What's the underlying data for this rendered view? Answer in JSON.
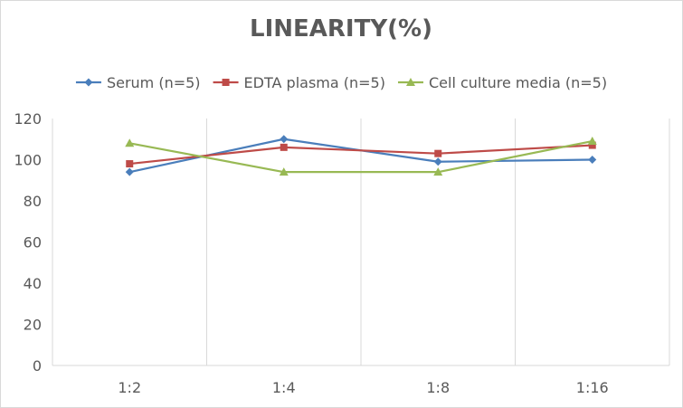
{
  "chart_data": {
    "type": "line",
    "title": "LINEARITY(%)",
    "xlabel": "",
    "ylabel": "",
    "categories": [
      "1:2",
      "1:4",
      "1:8",
      "1:16"
    ],
    "ylim": [
      0,
      120
    ],
    "yticks": [
      0,
      20,
      40,
      60,
      80,
      100,
      120
    ],
    "grid": "vertical-category-separators",
    "legend_position": "top",
    "series": [
      {
        "name": "Serum (n=5)",
        "values": [
          94,
          110,
          99,
          100
        ],
        "color": "#4a7ebb",
        "marker": "diamond"
      },
      {
        "name": "EDTA plasma (n=5)",
        "values": [
          98,
          106,
          103,
          107
        ],
        "color": "#be4b48",
        "marker": "square"
      },
      {
        "name": "Cell culture media (n=5)",
        "values": [
          108,
          94,
          94,
          109
        ],
        "color": "#98b954",
        "marker": "triangle"
      }
    ]
  }
}
